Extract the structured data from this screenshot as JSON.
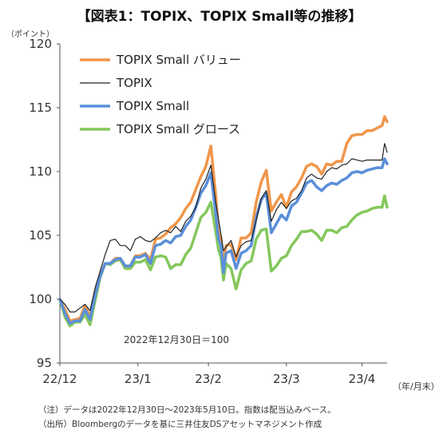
{
  "title": "【図表1：TOPIX、TOPIX Small等の推移】",
  "notes": [
    "（注）データは2022年12月30日～2023年5月10日。指数は配当込みベース。",
    "（出所）Bloombergのデータを基に三井住友DSアセットマネジメント作成"
  ],
  "chart_data": {
    "type": "line",
    "ylabel": "（ポイント）",
    "xunit": "（年/月末）",
    "ylim": [
      95,
      120
    ],
    "yticks": [
      95,
      100,
      105,
      110,
      115,
      120
    ],
    "xlim": [
      0,
      130
    ],
    "xticks": [
      {
        "label": "22/12",
        "x": 0
      },
      {
        "label": "23/1",
        "x": 31
      },
      {
        "label": "23/2",
        "x": 59
      },
      {
        "label": "23/3",
        "x": 90
      },
      {
        "label": "23/4",
        "x": 120
      }
    ],
    "annotation": "2022年12月30日＝100",
    "legend_position": "top-left",
    "grid": false,
    "series": [
      {
        "name": "TOPIX Small バリュー",
        "color": "#f0964a",
        "width": 3.5,
        "x": [
          0,
          2,
          4,
          6,
          8,
          10,
          12,
          14,
          16,
          18,
          20,
          22,
          24,
          26,
          28,
          30,
          32,
          34,
          36,
          38,
          40,
          42,
          44,
          46,
          48,
          50,
          52,
          54,
          56,
          58,
          60,
          62,
          63,
          64,
          65,
          66,
          68,
          70,
          72,
          74,
          76,
          78,
          80,
          82,
          84,
          86,
          88,
          90,
          92,
          94,
          96,
          98,
          100,
          102,
          104,
          106,
          108,
          110,
          112,
          114,
          116,
          118,
          120,
          122,
          124,
          126,
          128,
          129,
          130
        ],
        "values": [
          100,
          99.2,
          98.3,
          98.4,
          98.5,
          99.5,
          98.6,
          100.4,
          101.8,
          102.8,
          102.8,
          103.2,
          103.2,
          102.6,
          102.6,
          103.4,
          103.4,
          103.6,
          103.1,
          104.7,
          104.8,
          105.1,
          105.6,
          105.9,
          106.4,
          107.1,
          107.6,
          108.6,
          109.6,
          110.4,
          112,
          108,
          105.3,
          104.8,
          102.6,
          104.2,
          104.3,
          103.1,
          104.8,
          104.8,
          105.2,
          107.6,
          109.2,
          110.1,
          106.9,
          107.6,
          108.2,
          107.2,
          108.4,
          108.8,
          109.5,
          110.4,
          110.6,
          110.4,
          109.8,
          110.6,
          110.5,
          110.8,
          110.8,
          112.2,
          112.8,
          112.9,
          112.9,
          113.2,
          113.2,
          113.4,
          113.6,
          114.3,
          113.9
        ]
      },
      {
        "name": "TOPIX",
        "color": "#222222",
        "width": 1.2,
        "x": [
          0,
          2,
          4,
          6,
          8,
          10,
          12,
          14,
          16,
          18,
          20,
          22,
          24,
          26,
          28,
          30,
          32,
          34,
          36,
          38,
          40,
          42,
          44,
          46,
          48,
          50,
          52,
          54,
          56,
          58,
          60,
          62,
          63,
          64,
          65,
          66,
          68,
          70,
          72,
          74,
          76,
          78,
          80,
          82,
          84,
          86,
          88,
          90,
          92,
          94,
          96,
          98,
          100,
          102,
          104,
          106,
          108,
          110,
          112,
          114,
          116,
          118,
          120,
          122,
          124,
          126,
          128,
          129,
          130
        ],
        "values": [
          100,
          99.6,
          99,
          99,
          99.3,
          99.6,
          99.1,
          100.9,
          102.2,
          103.5,
          104.6,
          104.7,
          104.2,
          104.2,
          103.8,
          104.7,
          104.9,
          104.6,
          104.5,
          104.8,
          105.2,
          105.4,
          105.2,
          105.7,
          105.3,
          106.1,
          106.5,
          107.2,
          108.7,
          109.4,
          110.5,
          107.5,
          106.3,
          105.1,
          103.8,
          104.1,
          104.6,
          103.3,
          104.2,
          104.5,
          104.6,
          106.2,
          107.9,
          108.5,
          106.1,
          107,
          107.6,
          107.1,
          107.7,
          107.9,
          108.5,
          109.5,
          109.8,
          109.5,
          109.4,
          110,
          110.3,
          110.2,
          110.5,
          110.6,
          111,
          110.9,
          110.8,
          110.9,
          110.9,
          110.9,
          110.9,
          112.2,
          111.5
        ]
      },
      {
        "name": "TOPIX Small",
        "color": "#5b8fd9",
        "width": 3.5,
        "x": [
          0,
          2,
          4,
          6,
          8,
          10,
          12,
          14,
          16,
          18,
          20,
          22,
          24,
          26,
          28,
          30,
          32,
          34,
          36,
          38,
          40,
          42,
          44,
          46,
          48,
          50,
          52,
          54,
          56,
          58,
          60,
          62,
          63,
          64,
          65,
          66,
          68,
          70,
          72,
          74,
          76,
          78,
          80,
          82,
          84,
          86,
          88,
          90,
          92,
          94,
          96,
          98,
          100,
          102,
          104,
          106,
          108,
          110,
          112,
          114,
          116,
          118,
          120,
          122,
          124,
          126,
          128,
          129,
          130
        ],
        "values": [
          100,
          98.9,
          98.1,
          98.3,
          98.3,
          99.2,
          98.4,
          100.3,
          101.8,
          102.8,
          102.8,
          103.1,
          103.2,
          102.6,
          102.6,
          103.3,
          103.3,
          103.5,
          102.8,
          104.2,
          104.3,
          104.6,
          104.4,
          104.9,
          105,
          105.7,
          106.2,
          107.2,
          108.3,
          108.9,
          109.9,
          106.6,
          104.7,
          104.2,
          102.1,
          103.6,
          103.8,
          102.4,
          103.6,
          103.8,
          104.2,
          106.4,
          107.8,
          108.3,
          105.2,
          105.9,
          106.6,
          106.2,
          107.3,
          107.6,
          108.3,
          109.1,
          109.3,
          108.8,
          108.5,
          108.9,
          109.1,
          109,
          109.3,
          109.5,
          109.9,
          110,
          109.9,
          110.1,
          110.2,
          110.3,
          110.3,
          111,
          110.6
        ]
      },
      {
        "name": "TOPIX Small グロース",
        "color": "#84c75c",
        "width": 3.5,
        "x": [
          0,
          2,
          4,
          6,
          8,
          10,
          12,
          14,
          16,
          18,
          20,
          22,
          24,
          26,
          28,
          30,
          32,
          34,
          36,
          38,
          40,
          42,
          44,
          46,
          48,
          50,
          52,
          54,
          56,
          58,
          60,
          62,
          63,
          64,
          65,
          66,
          68,
          70,
          72,
          74,
          76,
          78,
          80,
          82,
          84,
          86,
          88,
          90,
          92,
          94,
          96,
          98,
          100,
          102,
          104,
          106,
          108,
          110,
          112,
          114,
          116,
          118,
          120,
          122,
          124,
          126,
          128,
          129,
          130
        ],
        "values": [
          100,
          98.6,
          97.9,
          98.2,
          98.2,
          98.8,
          98,
          99.9,
          101.7,
          102.8,
          102.7,
          103,
          103.1,
          102.4,
          102.4,
          102.9,
          102.9,
          103.1,
          102.3,
          103.3,
          103.4,
          103.3,
          102.4,
          102.7,
          102.7,
          103.5,
          104,
          105.2,
          106.4,
          106.8,
          107.6,
          105.2,
          103.9,
          103.3,
          101.5,
          102.8,
          102.4,
          100.8,
          102.3,
          102.8,
          103,
          104.7,
          105.4,
          105.5,
          102.2,
          102.6,
          103.2,
          103.4,
          104.2,
          104.7,
          105.3,
          105.3,
          105.4,
          105.1,
          104.6,
          105.4,
          105.4,
          105.2,
          105.6,
          105.7,
          106.2,
          106.6,
          106.8,
          106.9,
          107.1,
          107.2,
          107.2,
          108.1,
          107.2
        ]
      }
    ]
  }
}
